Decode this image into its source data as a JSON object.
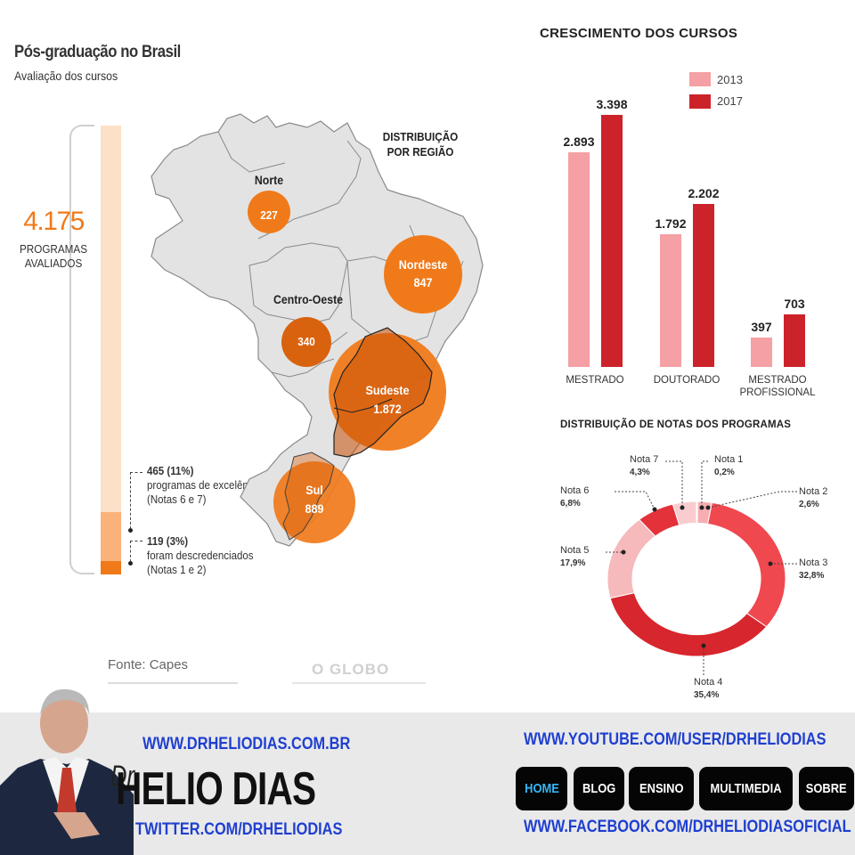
{
  "header": {
    "title": "Pós-graduação no Brasil",
    "subtitle": "Avaliação dos cursos"
  },
  "total": {
    "value": "4.175",
    "label": "PROGRAMAS AVALIADOS",
    "excellence_value": "465 (11%)",
    "excellence_line1": "programas de excelência",
    "excellence_line2": "(Notas 6 e 7)",
    "excellence_fraction": 0.11,
    "descredenciados_value": "119 (3%)",
    "descredenciados_line1": "foram descredenciados",
    "descredenciados_line2": "(Notas 1 e 2)",
    "descredenciados_fraction": 0.03
  },
  "map": {
    "heading": "DISTRIBUIÇÃO POR REGIÃO",
    "regions": [
      {
        "name": "Norte",
        "value": "227"
      },
      {
        "name": "Nordeste",
        "value": "847"
      },
      {
        "name": "Centro-Oeste",
        "value": "340"
      },
      {
        "name": "Sudeste",
        "value": "1.872"
      },
      {
        "name": "Sul",
        "value": "889"
      }
    ],
    "colors": {
      "bubble": "#f07a1a",
      "bubble_dark": "#d95f0a",
      "land": "#e6e6e6",
      "border": "#8a8a8a"
    }
  },
  "source": "Fonte: Capes",
  "publisher": "O GLOBO",
  "chart_data": [
    {
      "type": "bar",
      "title": "CRESCIMENTO DOS CURSOS",
      "categories": [
        "MESTRADO",
        "DOUTORADO",
        "MESTRADO PROFISSIONAL"
      ],
      "category_lines": [
        [
          "MESTRADO"
        ],
        [
          "DOUTORADO"
        ],
        [
          "MESTRADO",
          "PROFISSIONAL"
        ]
      ],
      "series": [
        {
          "name": "2013",
          "values": [
            2893,
            1792,
            397
          ],
          "labels": [
            "2.893",
            "1.792",
            "397"
          ],
          "color": "#f4a0a4"
        },
        {
          "name": "2017",
          "values": [
            3398,
            2202,
            703
          ],
          "labels": [
            "3.398",
            "2.202",
            "703"
          ],
          "color": "#cc2229"
        }
      ],
      "ylim": [
        0,
        3398
      ],
      "grid": false,
      "legend": "top"
    },
    {
      "type": "pie",
      "title": "DISTRIBUIÇÃO DE NOTAS DOS PROGRAMAS",
      "slices": [
        {
          "name": "Nota 1",
          "value": 0.2,
          "label": "0,2%",
          "color": "#fbd0d2"
        },
        {
          "name": "Nota 2",
          "value": 2.6,
          "label": "2,6%",
          "color": "#f7aeb2"
        },
        {
          "name": "Nota 3",
          "value": 32.8,
          "label": "32,8%",
          "color": "#f0484f"
        },
        {
          "name": "Nota 4",
          "value": 35.4,
          "label": "35,4%",
          "color": "#d7262d"
        },
        {
          "name": "Nota 5",
          "value": 17.9,
          "label": "17,9%",
          "color": "#f6b9bc"
        },
        {
          "name": "Nota 6",
          "value": 6.8,
          "label": "6,8%",
          "color": "#e4323a"
        },
        {
          "name": "Nota 7",
          "value": 4.3,
          "label": "4,3%",
          "color": "#f9cdd0"
        }
      ]
    }
  ],
  "banner": {
    "site": "WWW.DRHELIODIAS.COM.BR",
    "dr": "Dr.",
    "name": "HELIO DIAS",
    "twitter": "TWITTER.COM/DRHELIODIAS",
    "youtube": "WWW.YOUTUBE.COM/USER/DRHELIODIAS",
    "facebook": "WWW.FACEBOOK.COM/DRHELIODIASOFICIAL",
    "nav": [
      "HOME",
      "BLOG",
      "ENSINO",
      "MULTIMEDIA",
      "SOBRE"
    ],
    "link_color": "#1f3fd0",
    "active_nav_color": "#36b6f5"
  }
}
